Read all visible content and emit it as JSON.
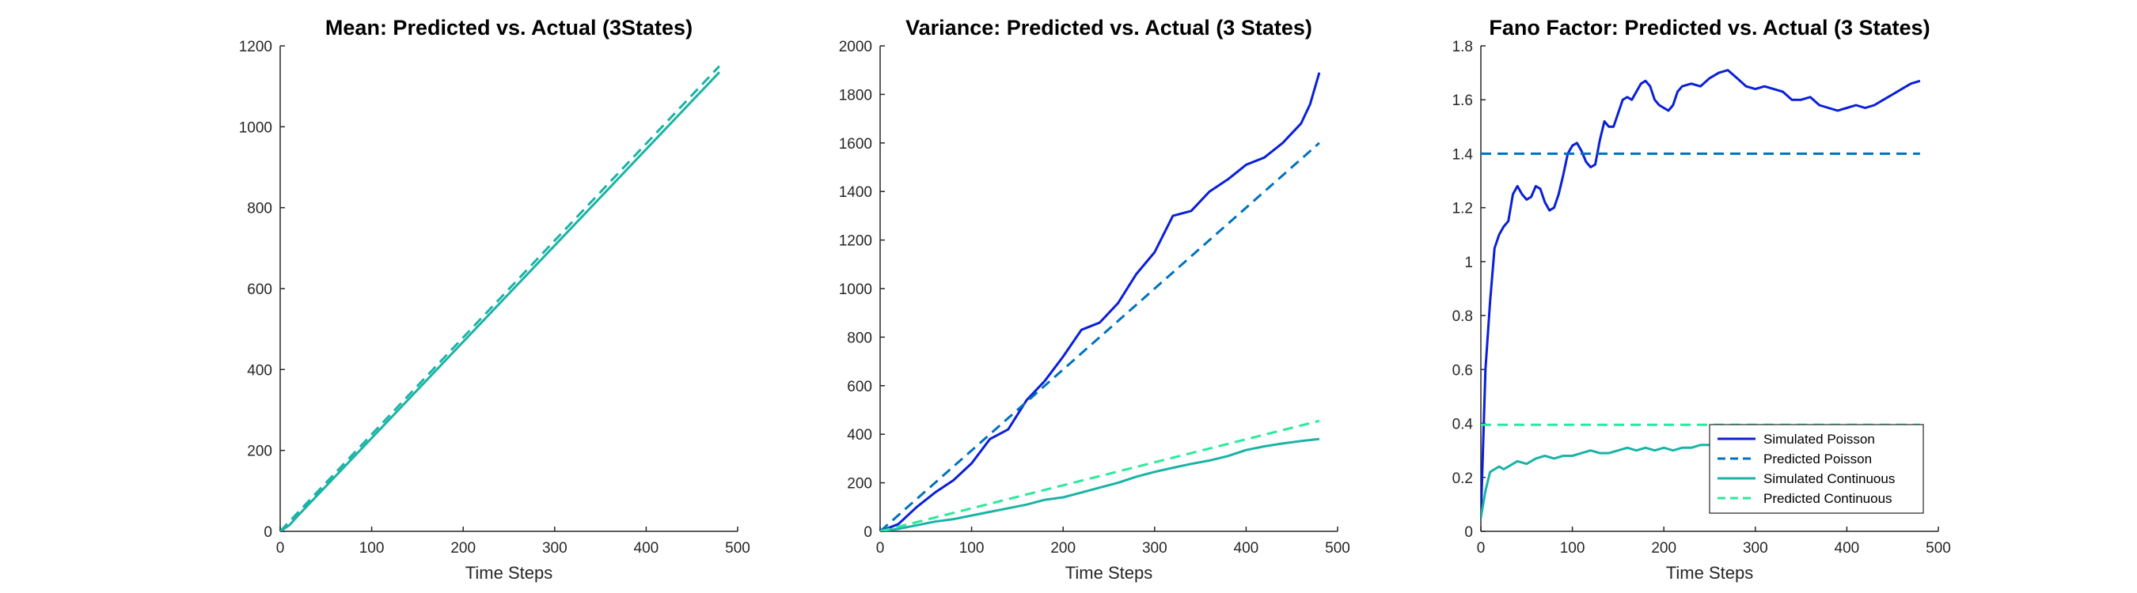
{
  "chart_data": [
    {
      "type": "line",
      "title": "Mean: Predicted vs. Actual (3States)",
      "xlabel": "Time Steps",
      "ylabel": "",
      "xlim": [
        0,
        500
      ],
      "ylim": [
        0,
        1200
      ],
      "xticks": [
        0,
        100,
        200,
        300,
        400,
        500
      ],
      "yticks": [
        0,
        200,
        400,
        600,
        800,
        1000,
        1200
      ],
      "grid": false,
      "series": [
        {
          "color": "#1ab3a6",
          "style": "solid",
          "x": [
            0,
            10,
            20,
            480
          ],
          "y": [
            0,
            15,
            40,
            1135
          ]
        },
        {
          "color": "#1ab3a6",
          "style": "dashed",
          "x": [
            0,
            480
          ],
          "y": [
            0,
            1150
          ]
        }
      ]
    },
    {
      "type": "line",
      "title": "Variance: Predicted vs. Actual (3 States)",
      "xlabel": "Time Steps",
      "ylabel": "",
      "xlim": [
        0,
        500
      ],
      "ylim": [
        0,
        2000
      ],
      "xticks": [
        0,
        100,
        200,
        300,
        400,
        500
      ],
      "yticks": [
        0,
        200,
        400,
        600,
        800,
        1000,
        1200,
        1400,
        1600,
        1800,
        2000
      ],
      "grid": false,
      "series": [
        {
          "color": "#0a1fd8",
          "style": "solid",
          "x": [
            0,
            20,
            40,
            60,
            80,
            100,
            120,
            140,
            160,
            180,
            200,
            220,
            240,
            260,
            280,
            300,
            320,
            340,
            360,
            380,
            400,
            420,
            440,
            460,
            470,
            480
          ],
          "y": [
            0,
            30,
            100,
            160,
            210,
            280,
            380,
            420,
            540,
            620,
            720,
            830,
            860,
            940,
            1060,
            1150,
            1300,
            1320,
            1400,
            1450,
            1510,
            1540,
            1600,
            1680,
            1760,
            1890
          ]
        },
        {
          "color": "#0072bd",
          "style": "dashed",
          "x": [
            0,
            480
          ],
          "y": [
            0,
            1600
          ]
        },
        {
          "color": "#1ab3a6",
          "style": "solid",
          "x": [
            0,
            20,
            40,
            60,
            80,
            100,
            120,
            140,
            160,
            180,
            200,
            220,
            240,
            260,
            280,
            300,
            320,
            340,
            360,
            380,
            400,
            420,
            440,
            460,
            480
          ],
          "y": [
            0,
            10,
            25,
            40,
            50,
            65,
            80,
            95,
            110,
            130,
            140,
            160,
            180,
            200,
            225,
            245,
            262,
            278,
            292,
            310,
            335,
            350,
            362,
            372,
            380
          ]
        },
        {
          "color": "#2de89a",
          "style": "dashed",
          "x": [
            0,
            480
          ],
          "y": [
            0,
            455
          ]
        }
      ]
    },
    {
      "type": "line",
      "title": "Fano Factor: Predicted vs. Actual (3 States)",
      "xlabel": "Time Steps",
      "ylabel": "",
      "xlim": [
        0,
        500
      ],
      "ylim": [
        0,
        1.8
      ],
      "xticks": [
        0,
        100,
        200,
        300,
        400,
        500
      ],
      "yticks": [
        0,
        0.2,
        0.4,
        0.6,
        0.8,
        1,
        1.2,
        1.4,
        1.6,
        1.8
      ],
      "grid": false,
      "legend_position": "bottom-right",
      "series": [
        {
          "name": "Simulated Poisson",
          "color": "#0a1fd8",
          "style": "solid",
          "x": [
            0,
            5,
            10,
            15,
            20,
            25,
            30,
            35,
            40,
            45,
            50,
            55,
            60,
            65,
            70,
            75,
            80,
            85,
            90,
            95,
            100,
            105,
            110,
            115,
            120,
            125,
            130,
            135,
            140,
            145,
            150,
            155,
            160,
            165,
            170,
            175,
            180,
            185,
            190,
            195,
            200,
            205,
            210,
            215,
            220,
            230,
            240,
            250,
            260,
            270,
            280,
            290,
            300,
            310,
            320,
            330,
            340,
            350,
            360,
            370,
            380,
            390,
            400,
            410,
            420,
            430,
            440,
            450,
            460,
            470,
            480
          ],
          "y": [
            0.05,
            0.6,
            0.85,
            1.05,
            1.1,
            1.13,
            1.15,
            1.25,
            1.28,
            1.25,
            1.23,
            1.24,
            1.28,
            1.27,
            1.22,
            1.19,
            1.2,
            1.25,
            1.32,
            1.4,
            1.43,
            1.44,
            1.41,
            1.37,
            1.35,
            1.36,
            1.45,
            1.52,
            1.5,
            1.5,
            1.55,
            1.6,
            1.61,
            1.6,
            1.63,
            1.66,
            1.67,
            1.65,
            1.6,
            1.58,
            1.57,
            1.56,
            1.58,
            1.63,
            1.65,
            1.66,
            1.65,
            1.68,
            1.7,
            1.71,
            1.68,
            1.65,
            1.64,
            1.65,
            1.64,
            1.63,
            1.6,
            1.6,
            1.61,
            1.58,
            1.57,
            1.56,
            1.57,
            1.58,
            1.57,
            1.58,
            1.6,
            1.62,
            1.64,
            1.66,
            1.67
          ]
        },
        {
          "name": "Predicted Poisson",
          "color": "#0072bd",
          "style": "dashed",
          "x": [
            0,
            480
          ],
          "y": [
            1.4,
            1.4
          ]
        },
        {
          "name": "Simulated Continuous",
          "color": "#1ab3a6",
          "style": "solid",
          "x": [
            0,
            5,
            10,
            15,
            20,
            25,
            30,
            40,
            50,
            60,
            70,
            80,
            90,
            100,
            110,
            120,
            130,
            140,
            150,
            160,
            170,
            180,
            190,
            200,
            210,
            220,
            230,
            240,
            250,
            260,
            270,
            280,
            300,
            320,
            340,
            360,
            380,
            400,
            420,
            440,
            460,
            480
          ],
          "y": [
            0.05,
            0.15,
            0.22,
            0.23,
            0.24,
            0.23,
            0.24,
            0.26,
            0.25,
            0.27,
            0.28,
            0.27,
            0.28,
            0.28,
            0.29,
            0.3,
            0.29,
            0.29,
            0.3,
            0.31,
            0.3,
            0.31,
            0.3,
            0.31,
            0.3,
            0.31,
            0.31,
            0.32,
            0.32,
            0.33,
            0.33,
            0.33,
            0.33,
            0.34,
            0.34,
            0.34,
            0.34,
            0.34,
            0.34,
            0.34,
            0.34,
            0.34
          ]
        },
        {
          "name": "Predicted Continuous",
          "color": "#2de89a",
          "style": "dashed",
          "x": [
            0,
            480
          ],
          "y": [
            0.395,
            0.395
          ]
        }
      ]
    }
  ]
}
